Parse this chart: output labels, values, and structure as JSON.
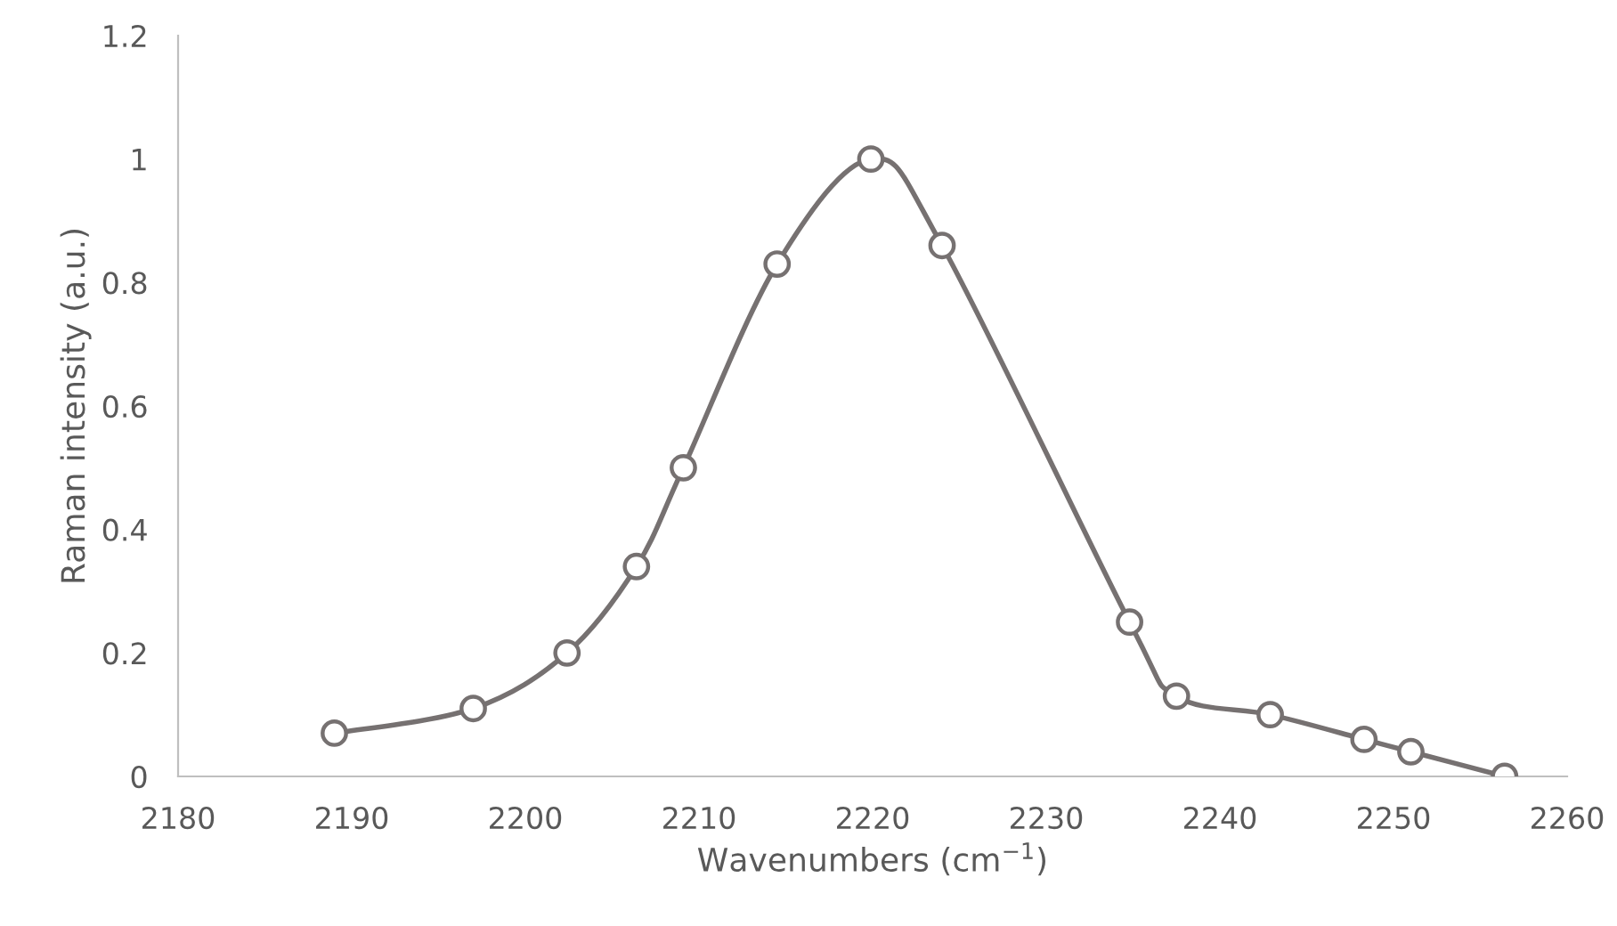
{
  "chart_data": {
    "type": "line",
    "xlabel": "Wavenumbers (cm$^{−1}$)",
    "ylabel": "Raman intensity (a.u.)",
    "x": [
      2189.0,
      2197.0,
      2202.4,
      2206.4,
      2209.1,
      2214.5,
      2219.9,
      2224.0,
      2234.8,
      2237.5,
      2242.9,
      2248.3,
      2251.0,
      2256.4
    ],
    "series": [
      {
        "color": "#767171",
        "values": [
          0.07,
          0.11,
          0.2,
          0.34,
          0.5,
          0.83,
          1.0,
          0.86,
          0.25,
          0.13,
          0.1,
          0.06,
          0.04,
          0.0
        ]
      }
    ],
    "xlim": [
      2180,
      2260
    ],
    "xticks": [
      2180,
      2190,
      2200,
      2210,
      2220,
      2230,
      2240,
      2250,
      2260
    ],
    "ylim": [
      0,
      1.2
    ],
    "yticks": [
      0,
      0.2,
      0.4,
      0.6,
      0.8,
      1,
      1.2
    ],
    "marker": "circle",
    "line_style": "solid",
    "grid": false,
    "legend": false
  }
}
